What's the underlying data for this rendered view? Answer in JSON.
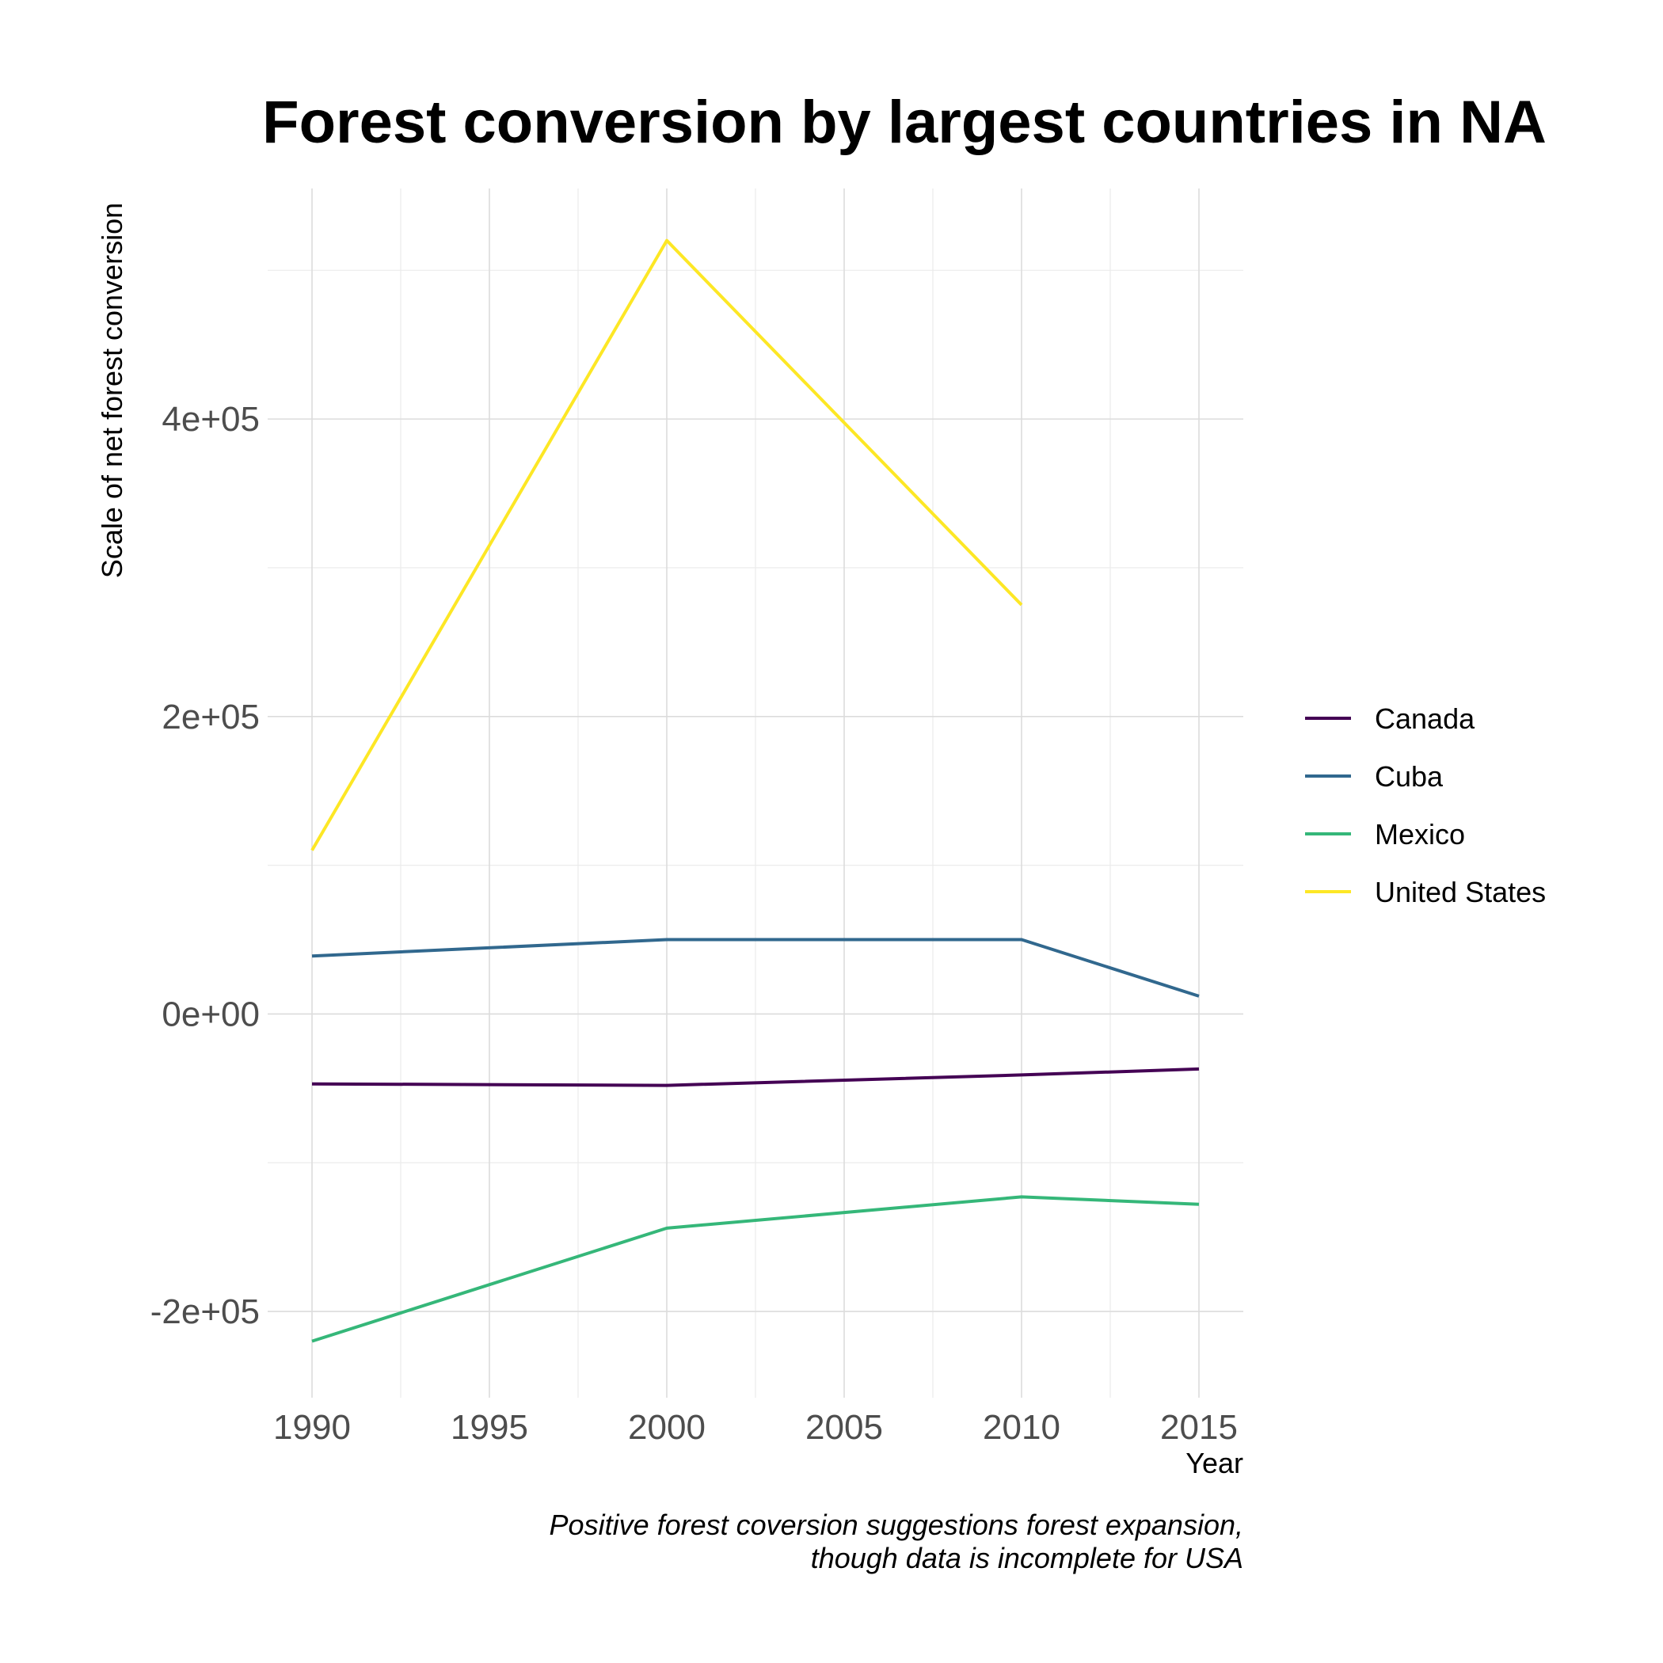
{
  "chart_data": {
    "type": "line",
    "title": "Forest conversion by largest countries in NA",
    "xlabel": "Year",
    "ylabel": "Scale of net forest conversion",
    "caption_lines": [
      "Positive forest coversion suggestions forest expansion,",
      "though data is incomplete for USA"
    ],
    "xlim": [
      1988.75,
      2016.25
    ],
    "ylim": [
      -258000,
      555000
    ],
    "x_ticks": [
      1990,
      1995,
      2000,
      2005,
      2010,
      2015
    ],
    "x_tick_labels": [
      "1990",
      "1995",
      "2000",
      "2005",
      "2010",
      "2015"
    ],
    "y_ticks": [
      -200000,
      0,
      200000,
      400000
    ],
    "y_tick_labels": [
      "-2e+05",
      "0e+00",
      "2e+05",
      "4e+05"
    ],
    "grid": true,
    "legend_position": "right",
    "series": [
      {
        "name": "Canada",
        "color": "#440154",
        "x": [
          1990,
          2000,
          2010,
          2015
        ],
        "y": [
          -47000,
          -48000,
          -41000,
          -37000
        ]
      },
      {
        "name": "Cuba",
        "color": "#31688E",
        "x": [
          1990,
          2000,
          2010,
          2015
        ],
        "y": [
          39000,
          50000,
          50000,
          12000
        ]
      },
      {
        "name": "Mexico",
        "color": "#35B779",
        "x": [
          1990,
          2000,
          2010,
          2015
        ],
        "y": [
          -220000,
          -144000,
          -123000,
          -128000
        ]
      },
      {
        "name": "United States",
        "color": "#FDE725",
        "x": [
          1990,
          2000,
          2010
        ],
        "y": [
          110000,
          520000,
          275000
        ]
      }
    ]
  }
}
